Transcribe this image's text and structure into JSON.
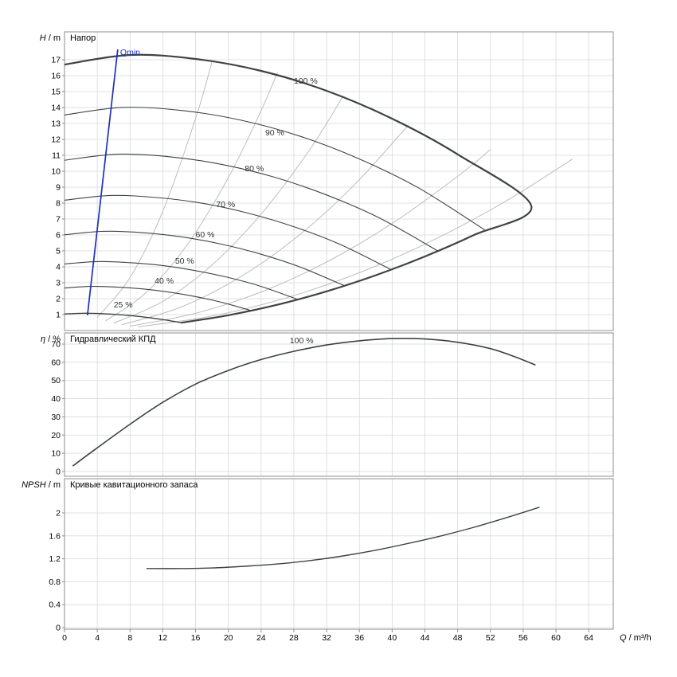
{
  "colors": {
    "curve": "#3d4247",
    "envelope": "#3d4247",
    "grid": "#d9d9d9",
    "border": "#8c8c8c",
    "axis_text": "#000000",
    "eff_contour": "#bdbdbd",
    "qmin": "#1f2fbe",
    "label_text": "#333333"
  },
  "chart_data": [
    {
      "type": "line",
      "panel": "head",
      "title": "Напор",
      "ylabel": {
        "var": "H",
        "unit": " / m"
      },
      "ylim": [
        0,
        18.75
      ],
      "yticks": [
        1,
        2,
        3,
        4,
        5,
        6,
        7,
        8,
        9,
        10,
        11,
        12,
        13,
        14,
        15,
        16,
        17
      ],
      "xlim": [
        0,
        67
      ],
      "xticks": [
        0,
        4,
        8,
        12,
        16,
        20,
        24,
        28,
        32,
        36,
        40,
        44,
        48,
        52,
        56,
        60,
        64
      ],
      "xlabel": {
        "var": "Q",
        "unit": " / m³/h"
      },
      "series": [
        {
          "name": "100 %",
          "label_at": [
            28,
            15.5
          ],
          "points": [
            [
              0,
              16.7
            ],
            [
              8,
              17.3
            ],
            [
              16,
              17.05
            ],
            [
              24,
              16.3
            ],
            [
              32,
              15.05
            ],
            [
              40,
              13.3
            ],
            [
              48,
              11.06
            ],
            [
              57,
              7.8
            ]
          ]
        },
        {
          "name": "90 %",
          "label_at": [
            24.5,
            12.25
          ],
          "points": [
            [
              0,
              13.53
            ],
            [
              7.2,
              14.01
            ],
            [
              14.4,
              13.81
            ],
            [
              21.6,
              13.2
            ],
            [
              28.8,
              12.19
            ],
            [
              36,
              10.77
            ],
            [
              43.2,
              8.96
            ],
            [
              51.3,
              6.32
            ]
          ]
        },
        {
          "name": "80 %",
          "label_at": [
            22,
            10.0
          ],
          "points": [
            [
              0,
              10.69
            ],
            [
              6.4,
              11.07
            ],
            [
              12.8,
              10.91
            ],
            [
              19.2,
              10.43
            ],
            [
              25.6,
              9.63
            ],
            [
              32,
              8.51
            ],
            [
              38.4,
              7.08
            ],
            [
              45.6,
              4.99
            ]
          ]
        },
        {
          "name": "70 %",
          "label_at": [
            18.5,
            7.75
          ],
          "points": [
            [
              0,
              8.18
            ],
            [
              5.6,
              8.48
            ],
            [
              11.2,
              8.35
            ],
            [
              16.8,
              7.99
            ],
            [
              22.4,
              7.37
            ],
            [
              28,
              6.52
            ],
            [
              33.6,
              5.42
            ],
            [
              39.9,
              3.82
            ]
          ]
        },
        {
          "name": "60 %",
          "label_at": [
            16,
            5.85
          ],
          "points": [
            [
              0,
              6.01
            ],
            [
              4.8,
              6.23
            ],
            [
              9.6,
              6.14
            ],
            [
              14.4,
              5.87
            ],
            [
              19.2,
              5.42
            ],
            [
              24,
              4.79
            ],
            [
              28.8,
              3.98
            ],
            [
              34.2,
              2.81
            ]
          ]
        },
        {
          "name": "50 %",
          "label_at": [
            13.5,
            4.2
          ],
          "points": [
            [
              0,
              4.18
            ],
            [
              4,
              4.33
            ],
            [
              8,
              4.26
            ],
            [
              12,
              4.08
            ],
            [
              16,
              3.76
            ],
            [
              20,
              3.33
            ],
            [
              24,
              2.77
            ],
            [
              28.5,
              1.95
            ]
          ]
        },
        {
          "name": "40 %",
          "label_at": [
            11,
            2.95
          ],
          "points": [
            [
              0,
              2.67
            ],
            [
              3.2,
              2.77
            ],
            [
              6.4,
              2.73
            ],
            [
              9.6,
              2.61
            ],
            [
              12.8,
              2.41
            ],
            [
              16,
              2.13
            ],
            [
              19.2,
              1.77
            ],
            [
              22.8,
              1.25
            ]
          ]
        },
        {
          "name": "25 %",
          "label_at": [
            6,
            1.45
          ],
          "points": [
            [
              0,
              1.04
            ],
            [
              2,
              1.08
            ],
            [
              4,
              1.07
            ],
            [
              6,
              1.02
            ],
            [
              8,
              0.94
            ],
            [
              10,
              0.83
            ],
            [
              12,
              0.69
            ],
            [
              14.25,
              0.49
            ]
          ]
        }
      ],
      "envelope_right": [
        [
          57,
          7.8
        ],
        [
          50,
          6.0
        ],
        [
          44,
          4.65
        ],
        [
          38,
          3.47
        ],
        [
          32,
          2.46
        ],
        [
          26,
          1.62
        ],
        [
          20,
          0.96
        ],
        [
          14.25,
          0.49
        ]
      ],
      "qmin_line": {
        "label": "Qmin",
        "points": [
          [
            6.5,
            17.65
          ],
          [
            2.8,
            0.95
          ]
        ],
        "label_at": [
          6.8,
          17.3
        ]
      },
      "efficiency_contours": [
        [
          [
            4,
            0.83
          ],
          [
            8,
            3.33
          ],
          [
            12,
            7.49
          ],
          [
            16,
            13.3
          ],
          [
            18,
            16.85
          ]
        ],
        [
          [
            5,
            0.6
          ],
          [
            10,
            2.4
          ],
          [
            15,
            5.4
          ],
          [
            20,
            9.6
          ],
          [
            24,
            13.8
          ],
          [
            26,
            16.2
          ]
        ],
        [
          [
            6,
            0.46
          ],
          [
            12,
            1.83
          ],
          [
            18,
            4.11
          ],
          [
            24,
            7.31
          ],
          [
            30,
            11.4
          ],
          [
            34,
            14.7
          ]
        ],
        [
          [
            7,
            0.36
          ],
          [
            14,
            1.43
          ],
          [
            21,
            3.22
          ],
          [
            28,
            5.72
          ],
          [
            35,
            8.94
          ],
          [
            42,
            12.9
          ]
        ],
        [
          [
            8,
            0.27
          ],
          [
            16,
            1.08
          ],
          [
            24,
            2.42
          ],
          [
            32,
            4.3
          ],
          [
            40,
            6.72
          ],
          [
            48,
            9.68
          ],
          [
            52,
            11.36
          ]
        ],
        [
          [
            9,
            0.23
          ],
          [
            18,
            0.91
          ],
          [
            27,
            2.04
          ],
          [
            36,
            3.63
          ],
          [
            45,
            5.67
          ],
          [
            54,
            8.16
          ],
          [
            62,
            10.76
          ]
        ]
      ]
    },
    {
      "type": "line",
      "panel": "efficiency",
      "title": "Гидравлический КПД",
      "ylabel": {
        "var": "η",
        "unit": " / %"
      },
      "ylim": [
        0,
        76
      ],
      "yticks": [
        0,
        10,
        20,
        30,
        40,
        50,
        60,
        70
      ],
      "series": [
        {
          "name": "100 %",
          "label_at": [
            27.5,
            70.5
          ],
          "points": [
            [
              1,
              3
            ],
            [
              4,
              13
            ],
            [
              8,
              26
            ],
            [
              12,
              38
            ],
            [
              16,
              48
            ],
            [
              20,
              55.5
            ],
            [
              24,
              61.5
            ],
            [
              28,
              66
            ],
            [
              32,
              69.5
            ],
            [
              36,
              71.8
            ],
            [
              40,
              73
            ],
            [
              44,
              72.8
            ],
            [
              48,
              71
            ],
            [
              52,
              67.5
            ],
            [
              55,
              63
            ],
            [
              57.5,
              58.5
            ]
          ]
        }
      ]
    },
    {
      "type": "line",
      "panel": "npsh",
      "title": "Кривые кавитационного запаса",
      "ylabel": {
        "var": "NPSH",
        "unit": " / m"
      },
      "ylim": [
        0,
        2.6
      ],
      "yticks": [
        0,
        0.4,
        0.8,
        1.2,
        1.6,
        2
      ],
      "series": [
        {
          "name": "NPSH",
          "points": [
            [
              10,
              1.03
            ],
            [
              14,
              1.03
            ],
            [
              18,
              1.04
            ],
            [
              22,
              1.07
            ],
            [
              26,
              1.11
            ],
            [
              30,
              1.17
            ],
            [
              34,
              1.25
            ],
            [
              38,
              1.35
            ],
            [
              42,
              1.47
            ],
            [
              46,
              1.6
            ],
            [
              50,
              1.75
            ],
            [
              54,
              1.92
            ],
            [
              58,
              2.1
            ]
          ]
        }
      ]
    }
  ]
}
